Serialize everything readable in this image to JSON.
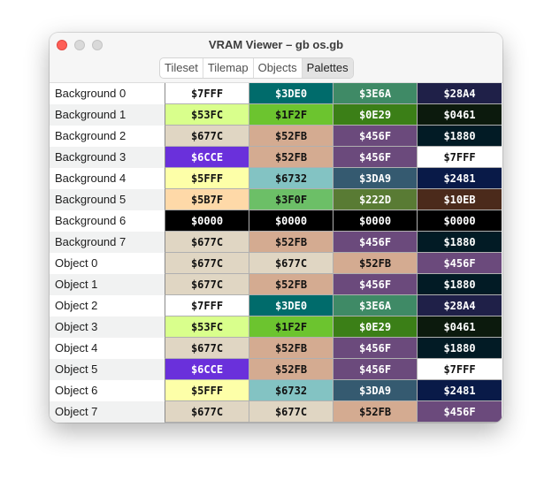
{
  "window": {
    "title": "VRAM Viewer – gb os.gb"
  },
  "tabs": [
    {
      "label": "Tileset",
      "active": false
    },
    {
      "label": "Tilemap",
      "active": false
    },
    {
      "label": "Objects",
      "active": false
    },
    {
      "label": "Palettes",
      "active": true
    }
  ],
  "palettes": [
    {
      "name": "Background 0",
      "colors": [
        {
          "hex": "$7FFF",
          "bg": "#ffffff",
          "fg": "#111111"
        },
        {
          "hex": "$3DE0",
          "bg": "#006b6b",
          "fg": "#ffffff"
        },
        {
          "hex": "$3E6A",
          "bg": "#3f8a66",
          "fg": "#ffffff"
        },
        {
          "hex": "$28A4",
          "bg": "#1f2048",
          "fg": "#ffffff"
        }
      ]
    },
    {
      "name": "Background 1",
      "colors": [
        {
          "hex": "$53FC",
          "bg": "#d9ff8c",
          "fg": "#111111"
        },
        {
          "hex": "$1F2F",
          "bg": "#6cc42f",
          "fg": "#111111"
        },
        {
          "hex": "$0E29",
          "bg": "#3b7f17",
          "fg": "#ffffff"
        },
        {
          "hex": "$0461",
          "bg": "#0c1a0d",
          "fg": "#ffffff"
        }
      ]
    },
    {
      "name": "Background 2",
      "colors": [
        {
          "hex": "$677C",
          "bg": "#e0d6c3",
          "fg": "#111111"
        },
        {
          "hex": "$52FB",
          "bg": "#d4ab91",
          "fg": "#111111"
        },
        {
          "hex": "$456F",
          "bg": "#6b4a7c",
          "fg": "#ffffff"
        },
        {
          "hex": "$1880",
          "bg": "#021b25",
          "fg": "#ffffff"
        }
      ]
    },
    {
      "name": "Background 3",
      "colors": [
        {
          "hex": "$6CCE",
          "bg": "#6a30db",
          "fg": "#ffffff"
        },
        {
          "hex": "$52FB",
          "bg": "#d4ab91",
          "fg": "#111111"
        },
        {
          "hex": "$456F",
          "bg": "#6b4a7c",
          "fg": "#ffffff"
        },
        {
          "hex": "$7FFF",
          "bg": "#ffffff",
          "fg": "#111111"
        }
      ]
    },
    {
      "name": "Background 4",
      "colors": [
        {
          "hex": "$5FFF",
          "bg": "#fdffa8",
          "fg": "#111111"
        },
        {
          "hex": "$6732",
          "bg": "#83c3c3",
          "fg": "#111111"
        },
        {
          "hex": "$3DA9",
          "bg": "#355a70",
          "fg": "#ffffff"
        },
        {
          "hex": "$2481",
          "bg": "#091a48",
          "fg": "#ffffff"
        }
      ]
    },
    {
      "name": "Background 5",
      "colors": [
        {
          "hex": "$5B7F",
          "bg": "#fed9a8",
          "fg": "#111111"
        },
        {
          "hex": "$3F0F",
          "bg": "#6cbf67",
          "fg": "#111111"
        },
        {
          "hex": "$222D",
          "bg": "#597b34",
          "fg": "#ffffff"
        },
        {
          "hex": "$10EB",
          "bg": "#4b2a1b",
          "fg": "#ffffff"
        }
      ]
    },
    {
      "name": "Background 6",
      "colors": [
        {
          "hex": "$0000",
          "bg": "#000000",
          "fg": "#ffffff"
        },
        {
          "hex": "$0000",
          "bg": "#000000",
          "fg": "#ffffff"
        },
        {
          "hex": "$0000",
          "bg": "#000000",
          "fg": "#ffffff"
        },
        {
          "hex": "$0000",
          "bg": "#000000",
          "fg": "#ffffff"
        }
      ]
    },
    {
      "name": "Background 7",
      "colors": [
        {
          "hex": "$677C",
          "bg": "#e0d6c3",
          "fg": "#111111"
        },
        {
          "hex": "$52FB",
          "bg": "#d4ab91",
          "fg": "#111111"
        },
        {
          "hex": "$456F",
          "bg": "#6b4a7c",
          "fg": "#ffffff"
        },
        {
          "hex": "$1880",
          "bg": "#021b25",
          "fg": "#ffffff"
        }
      ]
    },
    {
      "name": "Object 0",
      "colors": [
        {
          "hex": "$677C",
          "bg": "#e0d6c3",
          "fg": "#111111"
        },
        {
          "hex": "$677C",
          "bg": "#e0d6c3",
          "fg": "#111111"
        },
        {
          "hex": "$52FB",
          "bg": "#d4ab91",
          "fg": "#111111"
        },
        {
          "hex": "$456F",
          "bg": "#6b4a7c",
          "fg": "#ffffff"
        }
      ]
    },
    {
      "name": "Object 1",
      "colors": [
        {
          "hex": "$677C",
          "bg": "#e0d6c3",
          "fg": "#111111"
        },
        {
          "hex": "$52FB",
          "bg": "#d4ab91",
          "fg": "#111111"
        },
        {
          "hex": "$456F",
          "bg": "#6b4a7c",
          "fg": "#ffffff"
        },
        {
          "hex": "$1880",
          "bg": "#021b25",
          "fg": "#ffffff"
        }
      ]
    },
    {
      "name": "Object 2",
      "colors": [
        {
          "hex": "$7FFF",
          "bg": "#ffffff",
          "fg": "#111111"
        },
        {
          "hex": "$3DE0",
          "bg": "#006b6b",
          "fg": "#ffffff"
        },
        {
          "hex": "$3E6A",
          "bg": "#3f8a66",
          "fg": "#ffffff"
        },
        {
          "hex": "$28A4",
          "bg": "#1f2048",
          "fg": "#ffffff"
        }
      ]
    },
    {
      "name": "Object 3",
      "colors": [
        {
          "hex": "$53FC",
          "bg": "#d9ff8c",
          "fg": "#111111"
        },
        {
          "hex": "$1F2F",
          "bg": "#6cc42f",
          "fg": "#111111"
        },
        {
          "hex": "$0E29",
          "bg": "#3b7f17",
          "fg": "#ffffff"
        },
        {
          "hex": "$0461",
          "bg": "#0c1a0d",
          "fg": "#ffffff"
        }
      ]
    },
    {
      "name": "Object 4",
      "colors": [
        {
          "hex": "$677C",
          "bg": "#e0d6c3",
          "fg": "#111111"
        },
        {
          "hex": "$52FB",
          "bg": "#d4ab91",
          "fg": "#111111"
        },
        {
          "hex": "$456F",
          "bg": "#6b4a7c",
          "fg": "#ffffff"
        },
        {
          "hex": "$1880",
          "bg": "#021b25",
          "fg": "#ffffff"
        }
      ]
    },
    {
      "name": "Object 5",
      "colors": [
        {
          "hex": "$6CCE",
          "bg": "#6a30db",
          "fg": "#ffffff"
        },
        {
          "hex": "$52FB",
          "bg": "#d4ab91",
          "fg": "#111111"
        },
        {
          "hex": "$456F",
          "bg": "#6b4a7c",
          "fg": "#ffffff"
        },
        {
          "hex": "$7FFF",
          "bg": "#ffffff",
          "fg": "#111111"
        }
      ]
    },
    {
      "name": "Object 6",
      "colors": [
        {
          "hex": "$5FFF",
          "bg": "#fdffa8",
          "fg": "#111111"
        },
        {
          "hex": "$6732",
          "bg": "#83c3c3",
          "fg": "#111111"
        },
        {
          "hex": "$3DA9",
          "bg": "#355a70",
          "fg": "#ffffff"
        },
        {
          "hex": "$2481",
          "bg": "#091a48",
          "fg": "#ffffff"
        }
      ]
    },
    {
      "name": "Object 7",
      "colors": [
        {
          "hex": "$677C",
          "bg": "#e0d6c3",
          "fg": "#111111"
        },
        {
          "hex": "$677C",
          "bg": "#e0d6c3",
          "fg": "#111111"
        },
        {
          "hex": "$52FB",
          "bg": "#d4ab91",
          "fg": "#111111"
        },
        {
          "hex": "$456F",
          "bg": "#6b4a7c",
          "fg": "#ffffff"
        }
      ]
    }
  ]
}
